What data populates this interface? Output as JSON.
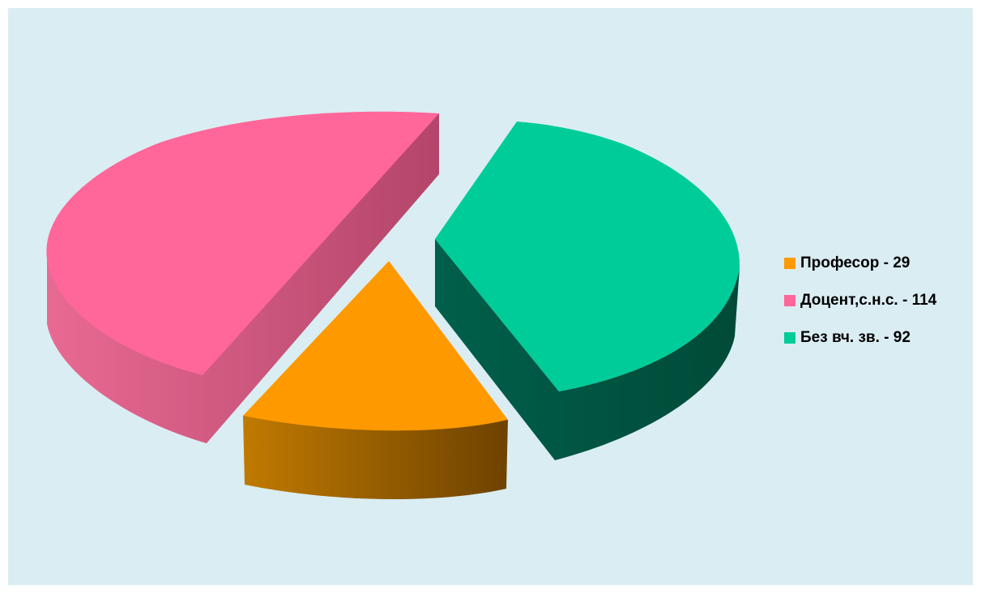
{
  "colors": {
    "background": "#daedf3",
    "profesor": "#ff9900",
    "docent": "#ff6699",
    "bez": "#00cc99"
  },
  "legend": {
    "items": [
      {
        "label": "Професор - 29",
        "color": "#ff9900"
      },
      {
        "label": "Доцент,с.н.с. - 114",
        "color": "#ff6699"
      },
      {
        "label": "Без вч. зв. - 92",
        "color": "#00cc99"
      }
    ]
  },
  "chart_data": {
    "type": "pie",
    "style": "3d-exploded",
    "categories": [
      "Професор",
      "Доцент,с.н.с.",
      "Без вч. зв."
    ],
    "values": [
      29,
      114,
      92
    ],
    "title": "",
    "legend_position": "right"
  }
}
